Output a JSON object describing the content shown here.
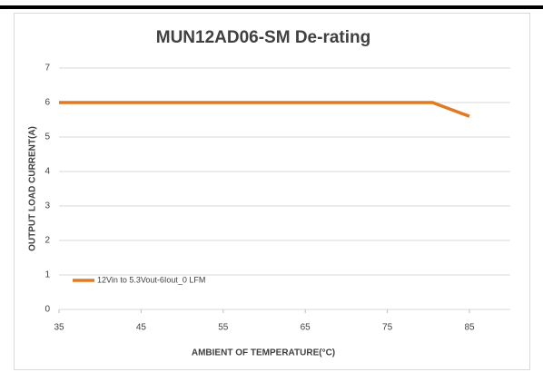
{
  "chart_data": {
    "type": "line",
    "title": "MUN12AD06-SM De-rating",
    "x_label": "AMBIENT OF TEMPERATURE(°C)",
    "y_label": "OUTPUT LOAD CURRENT(A)",
    "x": [
      35,
      80.5,
      85
    ],
    "series": [
      {
        "name": "12Vin to 5.3Vout-6Iout_0 LFM",
        "color": "#e07b24",
        "values": [
          6,
          6,
          5.6
        ]
      }
    ],
    "xlim": [
      35,
      85
    ],
    "xticks": [
      35,
      45,
      55,
      65,
      75,
      85
    ],
    "ylim": [
      0,
      7
    ],
    "yticks": [
      0,
      1,
      2,
      3,
      4,
      5,
      6,
      7
    ],
    "grid": true,
    "legend": "lower left"
  }
}
